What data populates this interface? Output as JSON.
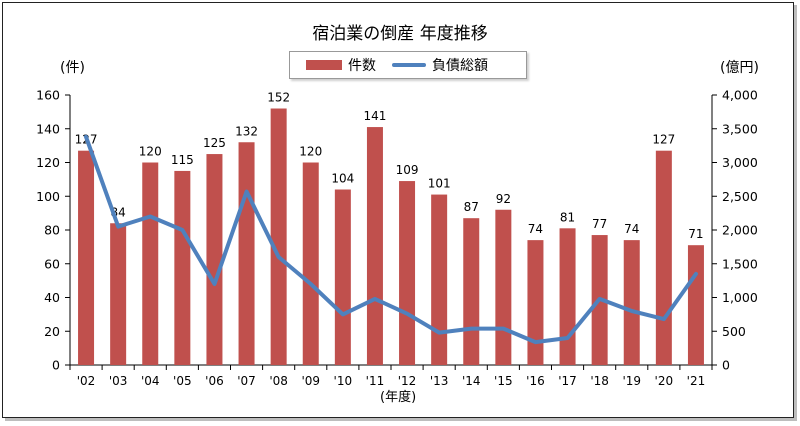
{
  "chart_data": {
    "type": "bar+line",
    "title": "宿泊業の倒産 年度推移",
    "categories": [
      "'02",
      "'03",
      "'04",
      "'05",
      "'06",
      "'07",
      "'08",
      "'09",
      "'10",
      "'11",
      "'12",
      "'13",
      "'14",
      "'15",
      "'16",
      "'17",
      "'18",
      "'19",
      "'20",
      "'21"
    ],
    "series": [
      {
        "name": "件数",
        "type": "bar",
        "axis": "left",
        "color": "#c0504d",
        "values": [
          127,
          84,
          120,
          115,
          125,
          132,
          152,
          120,
          104,
          141,
          109,
          101,
          87,
          92,
          74,
          81,
          77,
          74,
          127,
          71
        ]
      },
      {
        "name": "負債総額",
        "type": "line",
        "axis": "right",
        "color": "#4f81bd",
        "values": [
          3380,
          2050,
          2200,
          2000,
          1200,
          2570,
          1600,
          1200,
          750,
          980,
          760,
          480,
          540,
          540,
          340,
          400,
          980,
          800,
          680,
          1350
        ]
      }
    ],
    "y_left": {
      "label": "(件)",
      "min": 0,
      "max": 160,
      "ticks": [
        "0",
        "20",
        "40",
        "60",
        "80",
        "100",
        "120",
        "140",
        "160"
      ]
    },
    "y_right": {
      "label": "(億円)",
      "min": 0,
      "max": 4000,
      "ticks": [
        "0",
        "500",
        "1,000",
        "1,500",
        "2,000",
        "2,500",
        "3,000",
        "3,500",
        "4,000"
      ]
    },
    "xlabel": "(年度)",
    "legend_position": "top-center",
    "grid": false
  }
}
